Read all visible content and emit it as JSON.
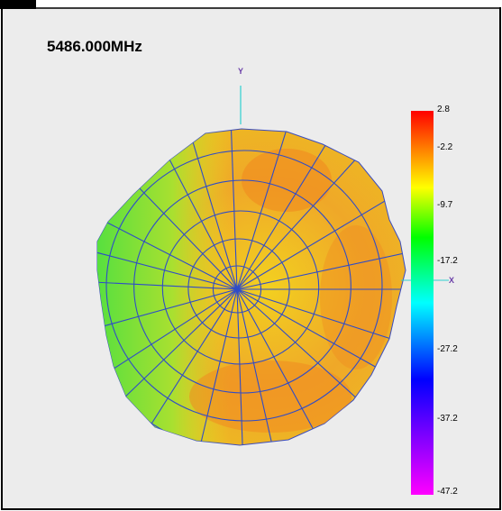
{
  "frequency_label": "5486.000MHz",
  "axes": {
    "y_label": "Y",
    "x_label": "X"
  },
  "colorbar": {
    "ticks": [
      "2.8",
      "-2.2",
      "-9.7",
      "-17.2",
      "-27.2",
      "-37.2",
      "-47.2"
    ],
    "colors": [
      "#ff0000",
      "#ff8000",
      "#ffff00",
      "#00ff00",
      "#00ffff",
      "#0000ff",
      "#8000ff",
      "#ff00ff"
    ]
  },
  "colors": {
    "background": "#ececec",
    "mesh_lines": "#2f4cc8",
    "surface_warm": "#f0a020",
    "surface_yellow": "#e8e020",
    "surface_green": "#60e030"
  },
  "chart_data": {
    "type": "heatmap",
    "title": "5486.000MHz",
    "colorbar_range": [
      -47.2,
      2.8
    ],
    "colorbar_ticks": [
      2.8,
      -2.2,
      -9.7,
      -17.2,
      -27.2,
      -37.2,
      -47.2
    ],
    "axes": [
      "X",
      "Y"
    ],
    "legend_placement": "right"
  }
}
